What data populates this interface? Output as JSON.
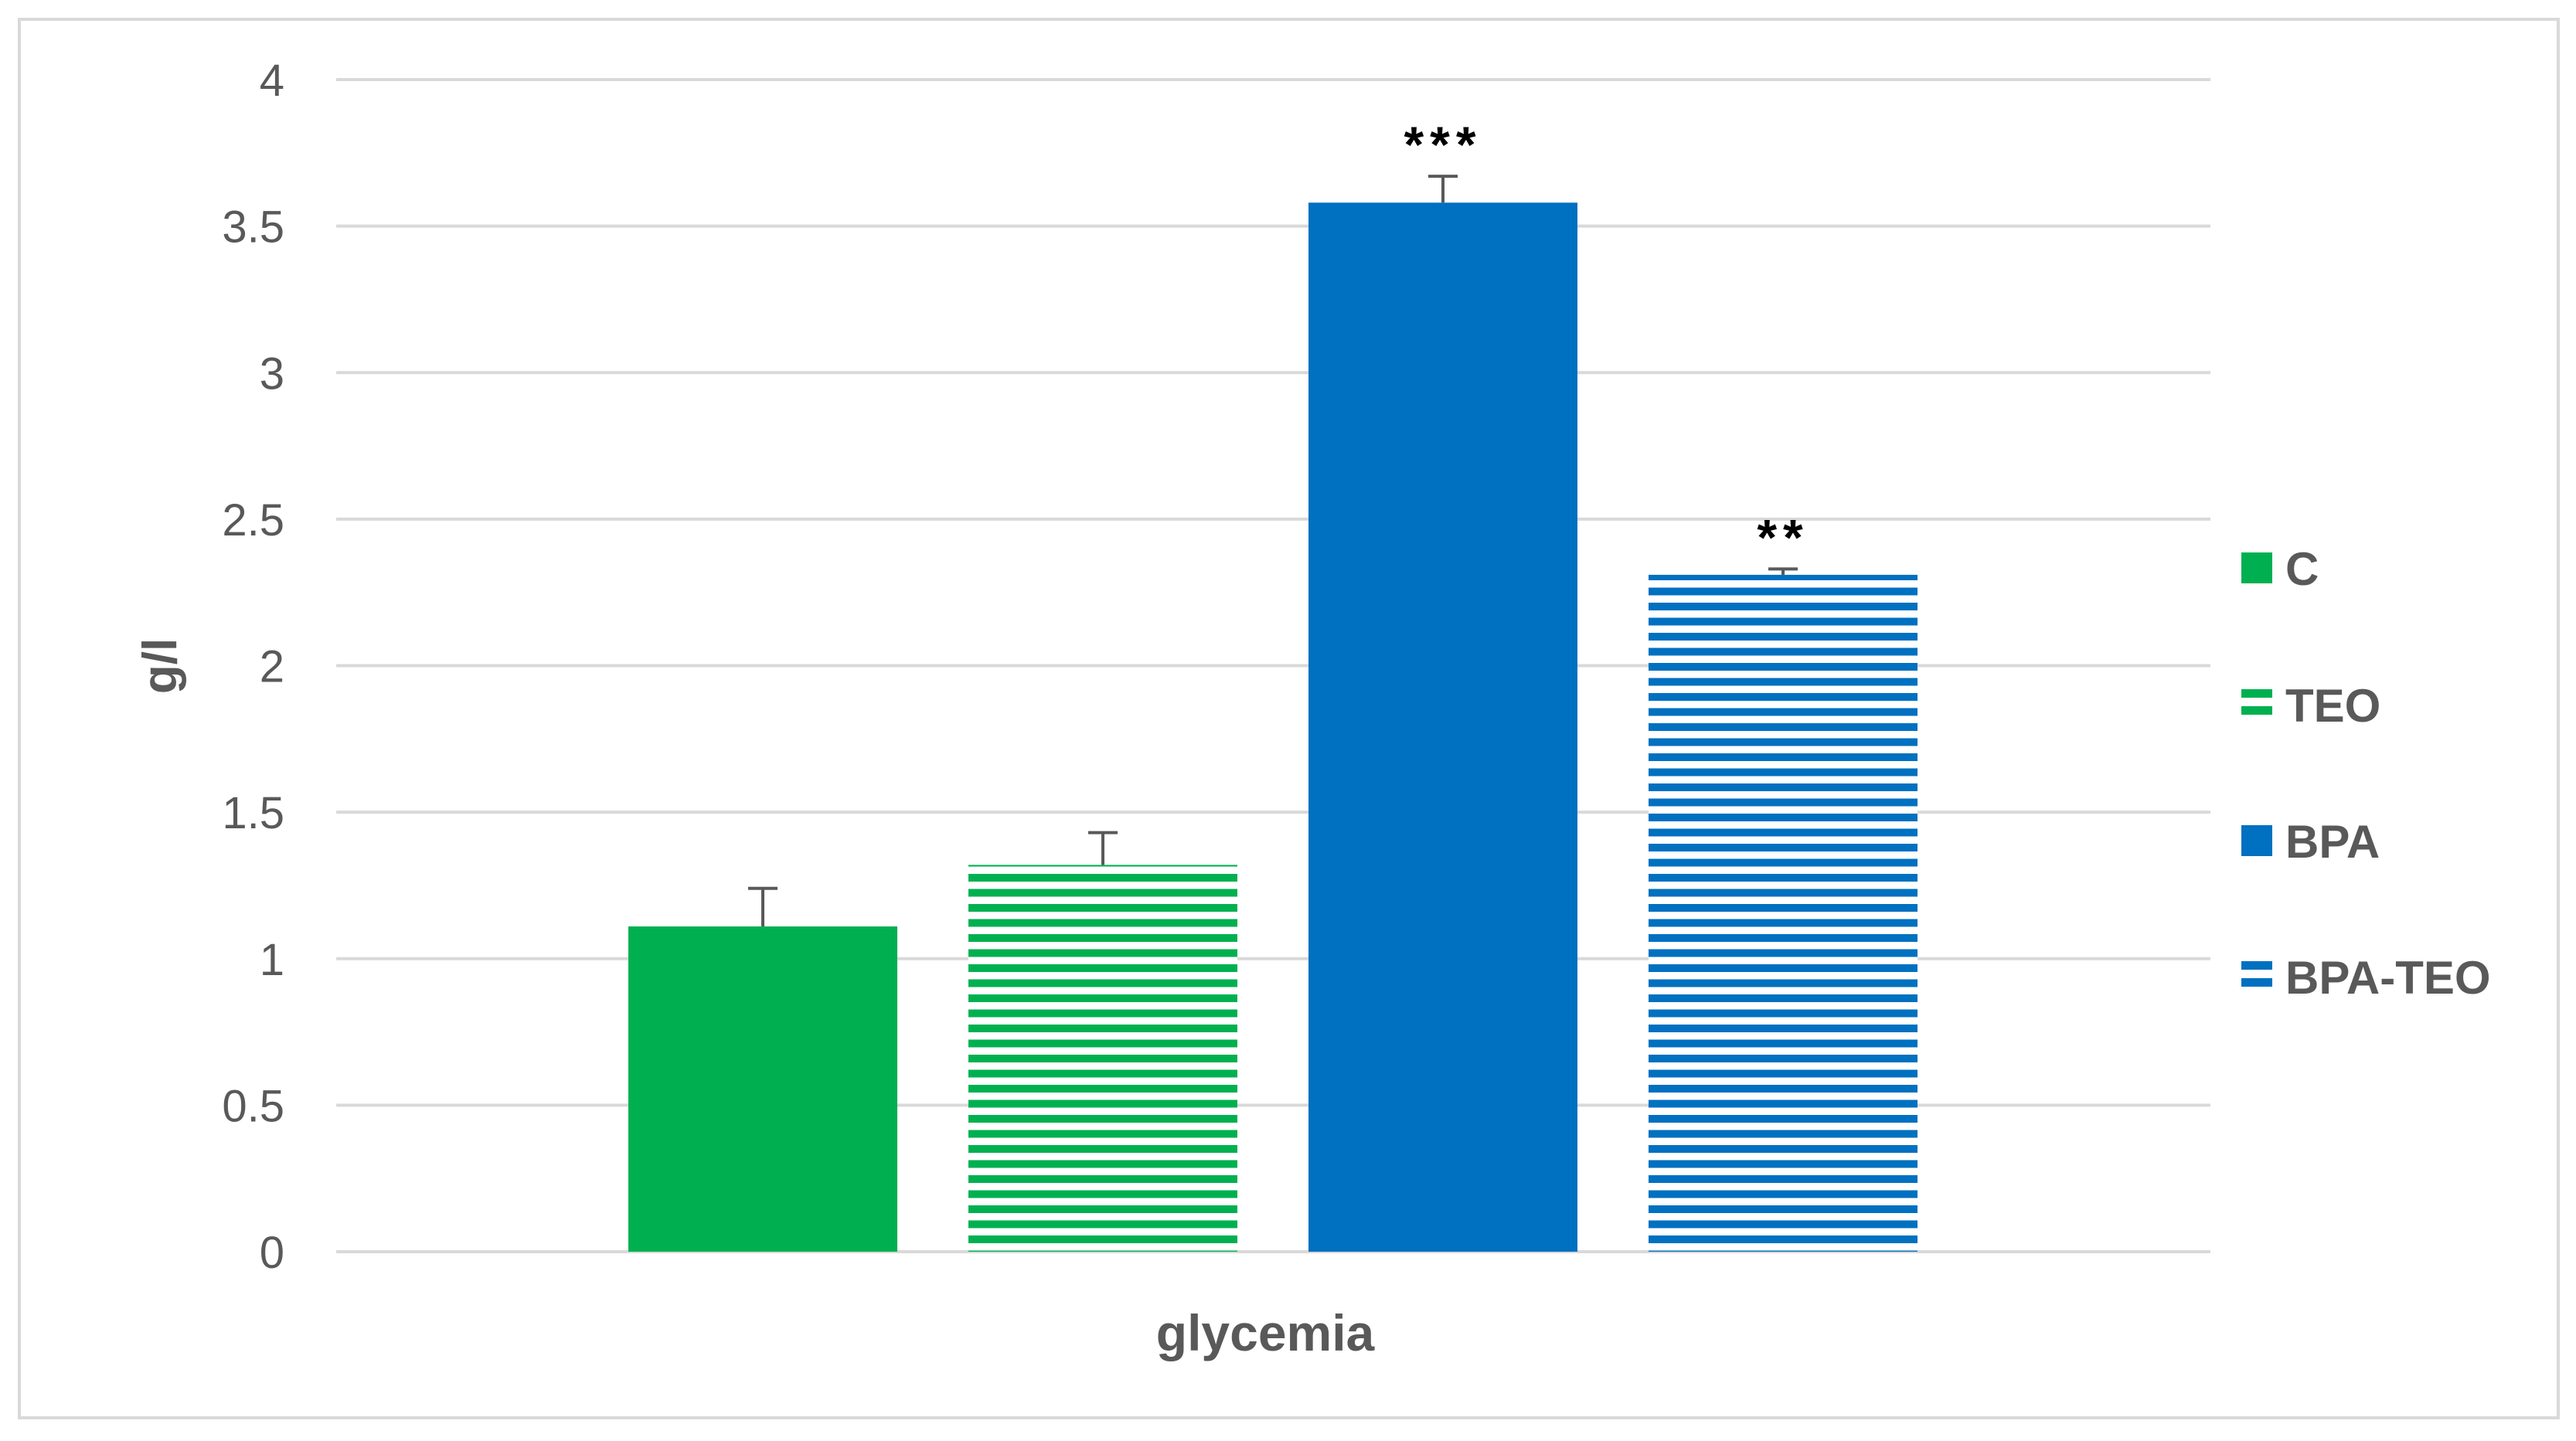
{
  "chart_data": {
    "type": "bar",
    "categories": [
      "glycemia"
    ],
    "xlabel": "glycemia",
    "ylabel": "g/l",
    "ylim": [
      0,
      4
    ],
    "yticks": [
      "0",
      "0.5",
      "1",
      "1.5",
      "2",
      "2.5",
      "3",
      "3.5",
      "4"
    ],
    "grid": true,
    "legend_position": "right",
    "series": [
      {
        "name": "C",
        "value": 1.11,
        "error": 0.13,
        "significance": "",
        "color": "#00b050",
        "pattern": "solid"
      },
      {
        "name": "TEO",
        "value": 1.32,
        "error": 0.11,
        "significance": "",
        "color": "#00b050",
        "pattern": "horizontal-stripes"
      },
      {
        "name": "BPA",
        "value": 3.58,
        "error": 0.09,
        "significance": "***",
        "color": "#0070c0",
        "pattern": "solid"
      },
      {
        "name": "BPA-TEO",
        "value": 2.31,
        "error": 0.02,
        "significance": "**",
        "color": "#0070c0",
        "pattern": "horizontal-stripes"
      }
    ]
  }
}
